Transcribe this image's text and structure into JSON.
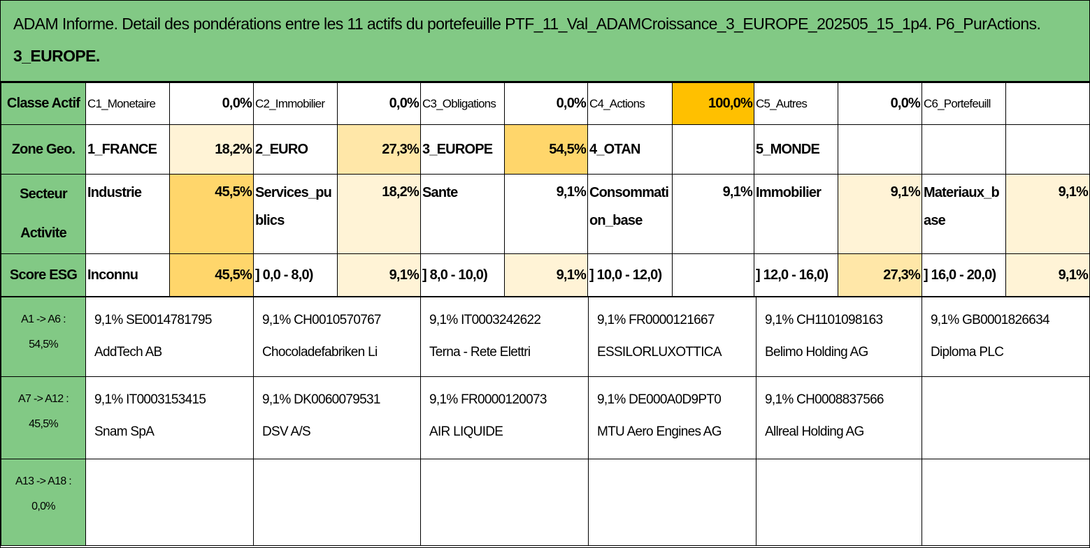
{
  "title": {
    "line1": "ADAM Informe. Detail des pondérations entre les 11 actifs du portefeuille PTF_11_Val_ADAMCroissance_3_EUROPE_202505_15_1p4. P6_PurActions.",
    "line2": "3_EUROPE."
  },
  "colors": {
    "header_green": "#82c985",
    "heat_low": "#fff3d6",
    "heat_mid": "#ffe7a8",
    "heat_high": "#ffd66b",
    "heat_max": "#ffc000"
  },
  "rows": {
    "classe": {
      "label": "Classe Actif",
      "cells": [
        {
          "name": "C1_Monetaire",
          "value": "0,0%"
        },
        {
          "name": "C2_Immobilier",
          "value": "0,0%"
        },
        {
          "name": "C3_Obligations",
          "value": "0,0%"
        },
        {
          "name": "C4_Actions",
          "value": "100,0%"
        },
        {
          "name": "C5_Autres",
          "value": "0,0%"
        },
        {
          "name": "C6_Portefeuill",
          "value": ""
        }
      ]
    },
    "zone": {
      "label": "Zone Geo.",
      "cells": [
        {
          "name": "1_FRANCE",
          "value": "18,2%"
        },
        {
          "name": "2_EURO",
          "value": "27,3%"
        },
        {
          "name": "3_EUROPE",
          "value": "54,5%"
        },
        {
          "name": "4_OTAN",
          "value": ""
        },
        {
          "name": "5_MONDE",
          "value": ""
        },
        {
          "name": "",
          "value": ""
        }
      ]
    },
    "secteur": {
      "label_line1": "Secteur",
      "label_line2": "Activite",
      "cells": [
        {
          "name": "Industrie",
          "value": "45,5%"
        },
        {
          "name": "Services_publics",
          "value": "18,2%"
        },
        {
          "name": "Sante",
          "value": "9,1%"
        },
        {
          "name": "Consommation_base",
          "value": "9,1%"
        },
        {
          "name": "Immobilier",
          "value": "9,1%"
        },
        {
          "name": "Materiaux_base",
          "value": "9,1%"
        }
      ]
    },
    "esg": {
      "label": "Score ESG",
      "cells": [
        {
          "name": "Inconnu",
          "value": "45,5%"
        },
        {
          "name": "] 0,0 - 8,0)",
          "value": "9,1%"
        },
        {
          "name": "] 8,0 - 10,0)",
          "value": "9,1%"
        },
        {
          "name": "] 10,0 - 12,0)",
          "value": ""
        },
        {
          "name": "] 12,0 - 16,0)",
          "value": "27,3%"
        },
        {
          "name": "] 16,0 - 20,0)",
          "value": "9,1%"
        }
      ]
    }
  },
  "asset_rows": [
    {
      "label_line1": "A1 -> A6 :",
      "label_line2": "54,5%",
      "assets": [
        {
          "line1": "9,1% SE0014781795",
          "line2": "AddTech AB"
        },
        {
          "line1": "9,1% CH0010570767",
          "line2": "Chocoladefabriken Li"
        },
        {
          "line1": "9,1% IT0003242622",
          "line2": "Terna - Rete Elettri"
        },
        {
          "line1": "9,1% FR0000121667",
          "line2": "ESSILORLUXOTTICA"
        },
        {
          "line1": "9,1% CH1101098163",
          "line2": "Belimo Holding AG"
        },
        {
          "line1": "9,1% GB0001826634",
          "line2": "Diploma PLC"
        }
      ]
    },
    {
      "label_line1": "A7 -> A12 :",
      "label_line2": "45,5%",
      "assets": [
        {
          "line1": "9,1% IT0003153415",
          "line2": "Snam SpA"
        },
        {
          "line1": "9,1% DK0060079531",
          "line2": "DSV A/S"
        },
        {
          "line1": "9,1% FR0000120073",
          "line2": "AIR LIQUIDE"
        },
        {
          "line1": "9,1% DE000A0D9PT0",
          "line2": "MTU Aero Engines AG"
        },
        {
          "line1": "9,1% CH0008837566",
          "line2": "Allreal Holding AG"
        },
        {
          "line1": "",
          "line2": ""
        }
      ]
    },
    {
      "label_line1": "A13 -> A18 :",
      "label_line2": "0,0%",
      "assets": [
        {
          "line1": "",
          "line2": ""
        },
        {
          "line1": "",
          "line2": ""
        },
        {
          "line1": "",
          "line2": ""
        },
        {
          "line1": "",
          "line2": ""
        },
        {
          "line1": "",
          "line2": ""
        },
        {
          "line1": "",
          "line2": ""
        }
      ]
    }
  ]
}
